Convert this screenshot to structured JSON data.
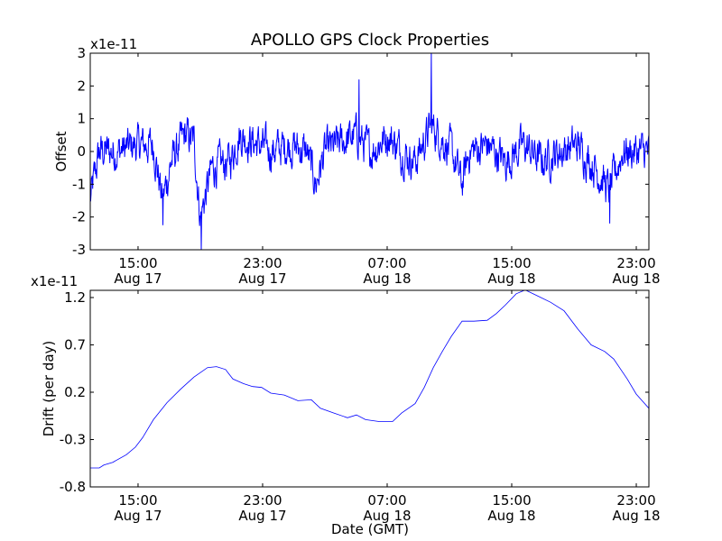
{
  "chart_data": [
    {
      "type": "line",
      "title": "APOLLO GPS Clock Properties",
      "ylabel": "Offset",
      "xlabel": "",
      "y_multiplier": "x1e-11",
      "x_units": "hours since Aug 17 15:00 GMT",
      "xlim": [
        -3.07,
        32.81
      ],
      "ylim": [
        -3,
        3
      ],
      "yticks": [
        {
          "v": 3,
          "label": "3"
        },
        {
          "v": 2,
          "label": "2"
        },
        {
          "v": 1,
          "label": "1"
        },
        {
          "v": 0,
          "label": "0"
        },
        {
          "v": -1,
          "label": "-1"
        },
        {
          "v": -2,
          "label": "-2"
        },
        {
          "v": -3,
          "label": "-3"
        }
      ],
      "xticks": [
        {
          "v": 0,
          "time": "15:00",
          "date": "Aug 17"
        },
        {
          "v": 8,
          "time": "23:00",
          "date": "Aug 17"
        },
        {
          "v": 16,
          "time": "07:00",
          "date": "Aug 18"
        },
        {
          "v": 24,
          "time": "15:00",
          "date": "Aug 18"
        },
        {
          "v": 32,
          "time": "23:00",
          "date": "Aug 18"
        }
      ],
      "color": "#0000ff",
      "series_trend": [
        [
          -3.07,
          -1.5
        ],
        [
          -2.49,
          0
        ],
        [
          -1.33,
          0
        ],
        [
          -0.17,
          0.2
        ],
        [
          0.99,
          0.2
        ],
        [
          1.57,
          -1.5
        ],
        [
          2.14,
          -0.3
        ],
        [
          3.01,
          0.5
        ],
        [
          3.59,
          0.3
        ],
        [
          4.0,
          -2
        ],
        [
          4.75,
          -0.5
        ],
        [
          5.91,
          -0.3
        ],
        [
          6.49,
          0.5
        ],
        [
          7.36,
          0.3
        ],
        [
          8.52,
          0
        ],
        [
          9.68,
          0.2
        ],
        [
          10.84,
          0
        ],
        [
          11.42,
          -1
        ],
        [
          12.0,
          0
        ],
        [
          13.16,
          0.3
        ],
        [
          14.03,
          0.5
        ],
        [
          14.9,
          0
        ],
        [
          16.06,
          0.5
        ],
        [
          16.93,
          0
        ],
        [
          17.8,
          -0.3
        ],
        [
          18.84,
          0.8
        ],
        [
          20.12,
          0
        ],
        [
          20.81,
          -1
        ],
        [
          21.28,
          0
        ],
        [
          22.43,
          0.2
        ],
        [
          23.59,
          -0.3
        ],
        [
          24.75,
          0.2
        ],
        [
          25.91,
          -0.3
        ],
        [
          27.07,
          0
        ],
        [
          28.23,
          0.2
        ],
        [
          29.39,
          -0.5
        ],
        [
          30.26,
          -1.2
        ],
        [
          31.13,
          0
        ],
        [
          32.81,
          0
        ]
      ],
      "noise_amplitude": 0.45,
      "spikes": [
        [
          18.84,
          3
        ],
        [
          4.05,
          -3
        ],
        [
          1.6,
          -2.25
        ],
        [
          30.3,
          -2.2
        ],
        [
          14.2,
          2.2
        ]
      ]
    },
    {
      "type": "line",
      "title": "",
      "ylabel": "Drift (per day)",
      "xlabel": "Date (GMT)",
      "y_multiplier": "x1e-11",
      "x_units": "hours since Aug 17 15:00 GMT",
      "xlim": [
        -3.07,
        32.81
      ],
      "ylim": [
        -0.8,
        1.276
      ],
      "yticks": [
        {
          "v": 1.2,
          "label": "1.2"
        },
        {
          "v": 0.7,
          "label": "0.7"
        },
        {
          "v": 0.2,
          "label": "0.2"
        },
        {
          "v": -0.3,
          "label": "-0.3"
        },
        {
          "v": -0.8,
          "label": "-0.8"
        }
      ],
      "xticks": [
        {
          "v": 0,
          "time": "15:00",
          "date": "Aug 17"
        },
        {
          "v": 8,
          "time": "23:00",
          "date": "Aug 17"
        },
        {
          "v": 16,
          "time": "07:00",
          "date": "Aug 18"
        },
        {
          "v": 24,
          "time": "15:00",
          "date": "Aug 18"
        },
        {
          "v": 32,
          "time": "23:00",
          "date": "Aug 18"
        }
      ],
      "color": "#0000ff",
      "points": [
        [
          -3.07,
          -0.6
        ],
        [
          -2.49,
          -0.6
        ],
        [
          -2.2,
          -0.57
        ],
        [
          -1.62,
          -0.54
        ],
        [
          -0.75,
          -0.46
        ],
        [
          -0.17,
          -0.38
        ],
        [
          0.29,
          -0.28
        ],
        [
          0.99,
          -0.09
        ],
        [
          1.86,
          0.09
        ],
        [
          2.72,
          0.23
        ],
        [
          3.59,
          0.36
        ],
        [
          4.46,
          0.46
        ],
        [
          5.04,
          0.47
        ],
        [
          5.62,
          0.44
        ],
        [
          6.09,
          0.34
        ],
        [
          6.78,
          0.29
        ],
        [
          7.36,
          0.26
        ],
        [
          7.94,
          0.25
        ],
        [
          8.52,
          0.19
        ],
        [
          9.39,
          0.17
        ],
        [
          10.26,
          0.11
        ],
        [
          11.13,
          0.12
        ],
        [
          11.71,
          0.03
        ],
        [
          12.58,
          -0.02
        ],
        [
          13.45,
          -0.07
        ],
        [
          14.03,
          -0.04
        ],
        [
          14.61,
          -0.09
        ],
        [
          15.48,
          -0.11
        ],
        [
          16.35,
          -0.11
        ],
        [
          16.93,
          -0.02
        ],
        [
          17.8,
          0.08
        ],
        [
          18.38,
          0.25
        ],
        [
          18.96,
          0.46
        ],
        [
          19.54,
          0.63
        ],
        [
          20.12,
          0.79
        ],
        [
          20.81,
          0.95
        ],
        [
          21.57,
          0.95
        ],
        [
          22.43,
          0.96
        ],
        [
          23.01,
          1.03
        ],
        [
          23.59,
          1.12
        ],
        [
          24.29,
          1.24
        ],
        [
          24.87,
          1.28
        ],
        [
          25.62,
          1.22
        ],
        [
          26.49,
          1.15
        ],
        [
          27.36,
          1.06
        ],
        [
          28.23,
          0.87
        ],
        [
          29.1,
          0.7
        ],
        [
          29.97,
          0.63
        ],
        [
          30.55,
          0.55
        ],
        [
          31.42,
          0.34
        ],
        [
          32.0,
          0.18
        ],
        [
          32.81,
          0.03
        ]
      ]
    }
  ]
}
